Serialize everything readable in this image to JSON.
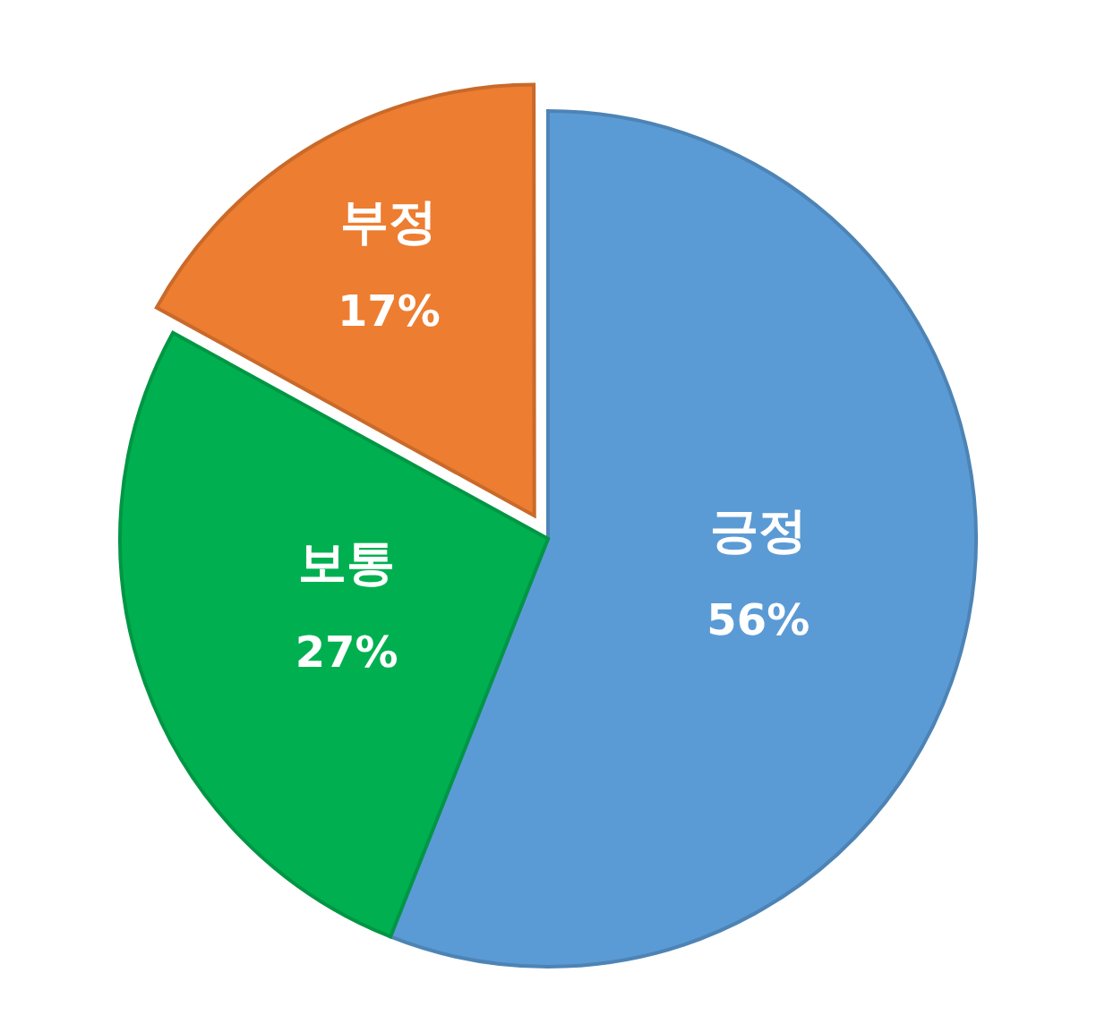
{
  "chart_data": {
    "type": "pie",
    "categories": [
      "긍정",
      "보통",
      "부정"
    ],
    "values": [
      56,
      27,
      17
    ],
    "colors": [
      "#5b9bd5",
      "#00b050",
      "#ed7d31"
    ],
    "value_labels": [
      "56%",
      "27%",
      "17%"
    ],
    "legend": false
  }
}
